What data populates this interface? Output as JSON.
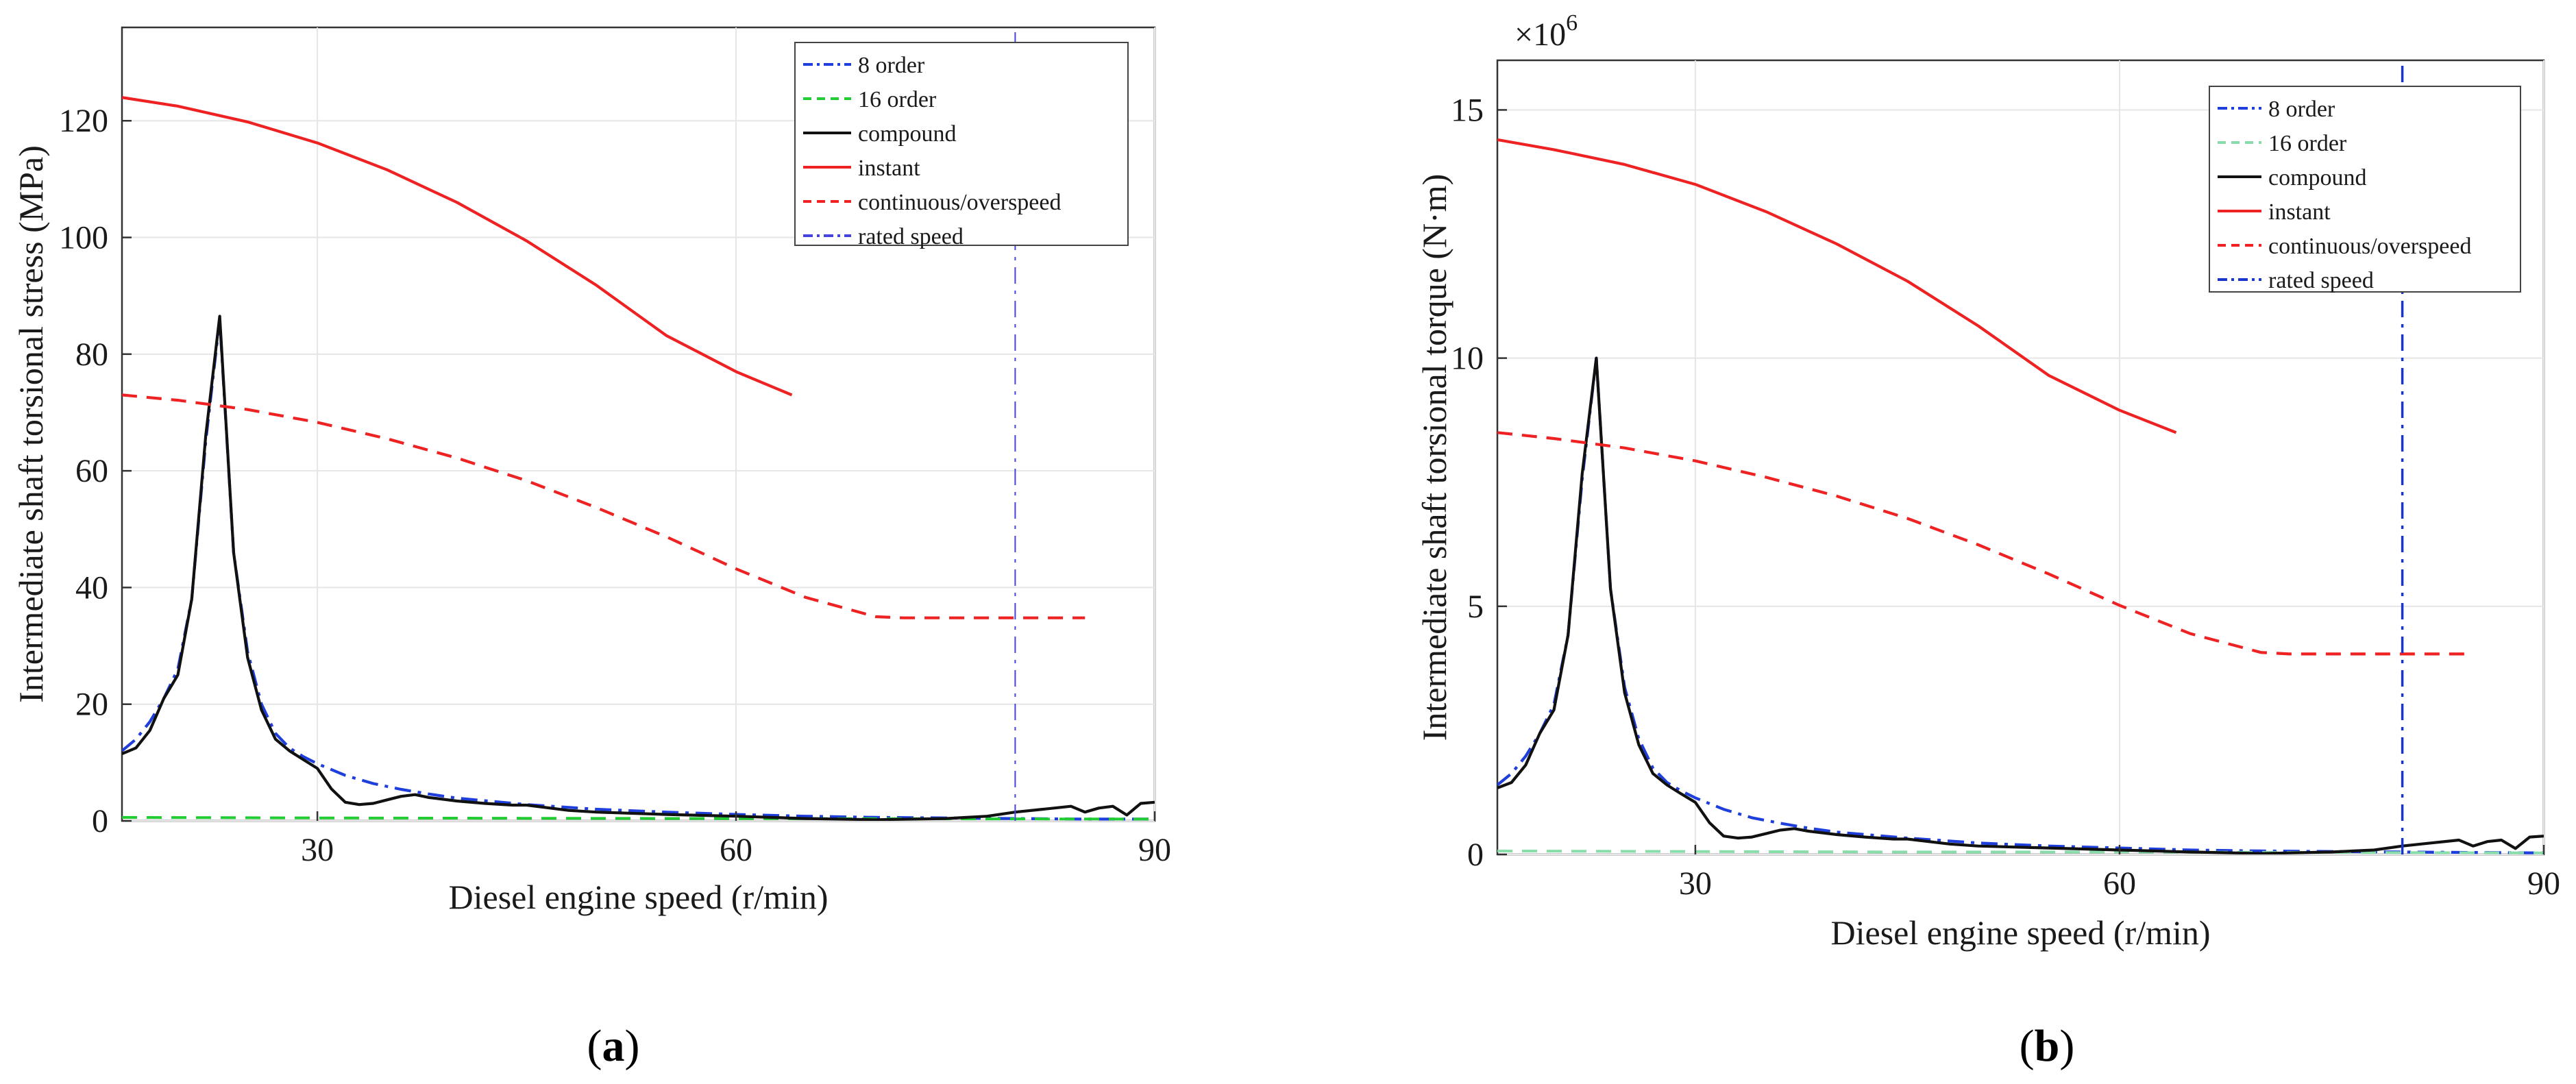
{
  "chart_data": [
    {
      "type": "line",
      "panel_label": "(a)",
      "panel_letter": "a",
      "ylabel": "Intermediate shaft torsional stress (MPa)",
      "xlabel": "Diesel engine speed (r/min)",
      "exponent_label": "",
      "xlim": [
        16,
        90
      ],
      "ylim": [
        0,
        136
      ],
      "xticks": [
        30,
        60,
        90
      ],
      "yticks": [
        0,
        20,
        40,
        60,
        80,
        100,
        120
      ],
      "legend_position": "top-right",
      "rated_speed": 80,
      "series": [
        {
          "name": "8 order",
          "color": "#1f3fdc",
          "style": "dashdot",
          "x": [
            16,
            17,
            18,
            19,
            20,
            21,
            22,
            23,
            24,
            25,
            26,
            27,
            28,
            29,
            30,
            32,
            34,
            36,
            38,
            40,
            45,
            50,
            55,
            60,
            65,
            70,
            75,
            80,
            85,
            90
          ],
          "y": [
            12,
            14,
            17,
            21,
            26,
            38,
            65,
            86,
            46,
            29,
            20,
            15,
            12.5,
            11,
            9.8,
            7.8,
            6.4,
            5.4,
            4.6,
            3.9,
            2.8,
            2,
            1.5,
            1.1,
            0.8,
            0.6,
            0.5,
            0.4,
            0.3,
            0.3
          ]
        },
        {
          "name": "16 order",
          "color": "#22cc33",
          "style": "dashed",
          "x": [
            16,
            30,
            45,
            60,
            75,
            90
          ],
          "y": [
            0.6,
            0.5,
            0.45,
            0.4,
            0.35,
            0.3
          ]
        },
        {
          "name": "compound",
          "color": "#111111",
          "style": "solid",
          "x": [
            16,
            17,
            18,
            19,
            20,
            21,
            22,
            23,
            24,
            25,
            26,
            27,
            28,
            29,
            30,
            31,
            32,
            33,
            34,
            35,
            36,
            37,
            38,
            40,
            42,
            44,
            45,
            48,
            50,
            55,
            60,
            65,
            70,
            75,
            78,
            80,
            82,
            84,
            85,
            86,
            87,
            88,
            89,
            90
          ],
          "y": [
            11.5,
            12.5,
            15.5,
            21,
            25,
            38,
            66,
            86.5,
            46,
            28,
            19,
            14,
            12,
            10.5,
            9,
            5.5,
            3.2,
            2.8,
            3,
            3.6,
            4.2,
            4.5,
            4,
            3.4,
            3,
            2.7,
            2.7,
            1.8,
            1.5,
            1.1,
            0.8,
            0.4,
            0.2,
            0.4,
            0.8,
            1.5,
            2,
            2.5,
            1.5,
            2.2,
            2.5,
            1,
            3,
            3.2
          ]
        },
        {
          "name": "instant",
          "color": "#ee2222",
          "style": "solid",
          "x": [
            16,
            20,
            25,
            30,
            35,
            40,
            45,
            50,
            55,
            60,
            64
          ],
          "y": [
            124,
            122.5,
            119.8,
            116.2,
            111.6,
            106,
            99.4,
            91.8,
            83.2,
            77,
            73
          ]
        },
        {
          "name": "continuous/overspeed",
          "color": "#ee2222",
          "style": "dashed",
          "x": [
            16,
            20,
            25,
            30,
            35,
            40,
            45,
            50,
            55,
            60,
            65,
            70,
            72,
            75,
            80,
            85
          ],
          "y": [
            73,
            72.1,
            70.5,
            68.3,
            65.5,
            62.2,
            58.3,
            53.7,
            48.7,
            43.2,
            38.3,
            35,
            34.8,
            34.8,
            34.8,
            34.8
          ]
        },
        {
          "name": "rated speed",
          "color": "#4444dd",
          "style": "dashdot",
          "x": [
            80,
            80
          ],
          "y": [
            0,
            136
          ]
        }
      ]
    },
    {
      "type": "line",
      "panel_label": "(b)",
      "panel_letter": "b",
      "ylabel": "Intermediate shaft torsional torque (N·m)",
      "xlabel": "Diesel engine speed (r/min)",
      "exponent_label": "×10^6",
      "exponent_base": "×10",
      "exponent_power": "6",
      "xlim": [
        16,
        90
      ],
      "ylim": [
        0,
        16
      ],
      "xticks": [
        30,
        60,
        90
      ],
      "yticks": [
        0,
        5,
        10,
        15
      ],
      "legend_position": "top-right",
      "rated_speed": 80,
      "series": [
        {
          "name": "8 order",
          "color": "#1f3fdc",
          "style": "dashdot",
          "x": [
            16,
            17,
            18,
            19,
            20,
            21,
            22,
            23,
            24,
            25,
            26,
            27,
            28,
            29,
            30,
            32,
            34,
            36,
            38,
            40,
            45,
            50,
            55,
            60,
            65,
            70,
            75,
            80,
            85,
            90
          ],
          "y": [
            1.4,
            1.63,
            1.98,
            2.44,
            3.02,
            4.42,
            7.56,
            10,
            5.35,
            3.37,
            2.33,
            1.74,
            1.45,
            1.28,
            1.14,
            0.91,
            0.74,
            0.63,
            0.53,
            0.45,
            0.33,
            0.23,
            0.17,
            0.13,
            0.09,
            0.07,
            0.06,
            0.05,
            0.04,
            0.03
          ]
        },
        {
          "name": "16 order",
          "color": "#88ddaa",
          "style": "dashed",
          "x": [
            16,
            30,
            45,
            60,
            75,
            90
          ],
          "y": [
            0.07,
            0.06,
            0.05,
            0.05,
            0.04,
            0.03
          ]
        },
        {
          "name": "compound",
          "color": "#111111",
          "style": "solid",
          "x": [
            16,
            17,
            18,
            19,
            20,
            21,
            22,
            23,
            24,
            25,
            26,
            27,
            28,
            29,
            30,
            31,
            32,
            33,
            34,
            35,
            36,
            37,
            38,
            40,
            42,
            44,
            45,
            48,
            50,
            55,
            60,
            65,
            70,
            75,
            78,
            80,
            82,
            84,
            85,
            86,
            87,
            88,
            89,
            90
          ],
          "y": [
            1.34,
            1.45,
            1.8,
            2.44,
            2.91,
            4.42,
            7.67,
            10,
            5.35,
            3.26,
            2.21,
            1.63,
            1.4,
            1.22,
            1.05,
            0.64,
            0.37,
            0.33,
            0.35,
            0.42,
            0.49,
            0.52,
            0.47,
            0.4,
            0.35,
            0.31,
            0.31,
            0.21,
            0.17,
            0.13,
            0.09,
            0.05,
            0.02,
            0.05,
            0.09,
            0.17,
            0.23,
            0.29,
            0.17,
            0.26,
            0.29,
            0.12,
            0.35,
            0.37
          ]
        },
        {
          "name": "instant",
          "color": "#ee2222",
          "style": "solid",
          "x": [
            16,
            20,
            25,
            30,
            35,
            40,
            45,
            50,
            55,
            60,
            64
          ],
          "y": [
            14.4,
            14.2,
            13.9,
            13.5,
            12.95,
            12.3,
            11.55,
            10.65,
            9.65,
            8.95,
            8.5
          ]
        },
        {
          "name": "continuous/overspeed",
          "color": "#ee2222",
          "style": "dashed",
          "x": [
            16,
            20,
            25,
            30,
            35,
            40,
            45,
            50,
            55,
            60,
            65,
            70,
            72,
            75,
            80,
            85
          ],
          "y": [
            8.5,
            8.38,
            8.19,
            7.93,
            7.6,
            7.22,
            6.77,
            6.24,
            5.65,
            5.02,
            4.45,
            4.07,
            4.04,
            4.04,
            4.04,
            4.04
          ]
        },
        {
          "name": "rated speed",
          "color": "#1a35cc",
          "style": "dashdot",
          "x": [
            80,
            80
          ],
          "y": [
            0,
            16
          ]
        }
      ]
    }
  ]
}
